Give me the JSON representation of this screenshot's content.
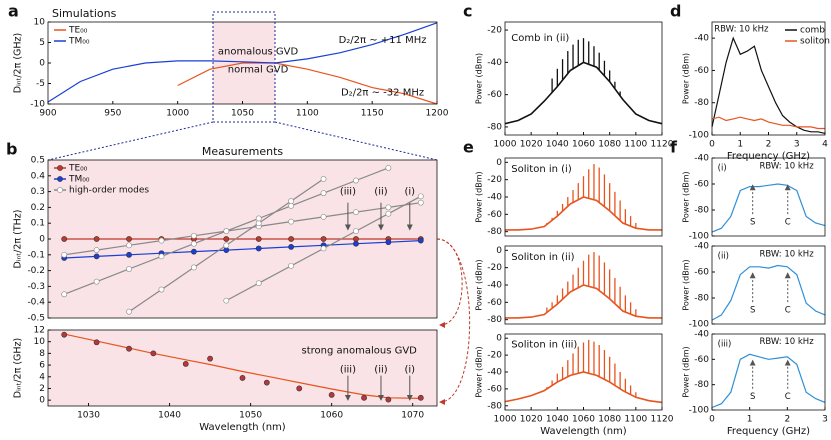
{
  "chart_data": [
    {
      "type": "line",
      "label": "a",
      "title": "Simulations",
      "x": [
        900,
        925,
        950,
        975,
        1000,
        1025,
        1050,
        1075,
        1100,
        1125,
        1150,
        1175,
        1200
      ],
      "xlim": [
        900,
        1200
      ],
      "xticks": [
        900,
        950,
        1000,
        1050,
        1100,
        1150,
        1200
      ],
      "ylim": [
        -10,
        10
      ],
      "yticks": [
        -10,
        -5,
        0,
        5,
        10
      ],
      "ylabel": "Dᵢₙₜ/2π (GHz)",
      "legend": "upper left",
      "series": [
        {
          "name": "TE₀₀",
          "color": "#e8541e",
          "style": "line",
          "values": [
            null,
            null,
            null,
            null,
            -5.5,
            -1.5,
            0,
            0,
            -1.5,
            -3.5,
            -6,
            -7.5,
            -10
          ]
        },
        {
          "name": "TM₀₀",
          "color": "#1a3fd6",
          "style": "line",
          "values": [
            -9.5,
            -4.5,
            -1.5,
            0,
            0.5,
            0.5,
            0.3,
            0,
            1,
            2.5,
            4.5,
            7,
            9.8
          ]
        }
      ],
      "annotations": [
        "anomalous GVD",
        "normal GVD",
        "D₂/2π ~ +11 MHz",
        "D₂/2π ~ -32 MHz"
      ]
    },
    {
      "type": "line",
      "label": "b",
      "title": "Measurements",
      "x": [
        1027,
        1031,
        1035,
        1039,
        1043,
        1047,
        1051,
        1055,
        1059,
        1063,
        1067,
        1071
      ],
      "xlim": [
        1025,
        1073
      ],
      "ylim": [
        -0.5,
        0.5
      ],
      "yticks": [
        -0.5,
        -0.4,
        -0.3,
        -0.2,
        -0.1,
        0,
        0.1,
        0.2,
        0.3,
        0.4,
        0.5
      ],
      "ylabel": "Dᵢₙₜ/2π (THz)",
      "legend": "upper left",
      "series": [
        {
          "name": "TE₀₀",
          "color": "#c0392b",
          "style": "line+points",
          "values": [
            0,
            0,
            0,
            0,
            0,
            0,
            0,
            0,
            0,
            0,
            0,
            0
          ]
        },
        {
          "name": "TM₀₀",
          "color": "#1a3fd6",
          "style": "line+points",
          "values": [
            -0.12,
            -0.11,
            -0.1,
            -0.09,
            -0.08,
            -0.07,
            -0.06,
            -0.05,
            -0.04,
            -0.03,
            -0.02,
            -0.01
          ]
        },
        {
          "name": "high-order modes",
          "color": "#888888",
          "style": "line+hollow",
          "values": [
            -0.1,
            -0.07,
            -0.04,
            -0.01,
            0.02,
            0.05,
            0.08,
            0.11,
            0.14,
            0.17,
            0.2,
            0.23
          ]
        },
        {
          "color": "#888888",
          "style": "line+hollow",
          "values": [
            null,
            null,
            -0.46,
            -0.32,
            -0.18,
            -0.04,
            0.1,
            0.24,
            0.38,
            null,
            null,
            null
          ]
        },
        {
          "color": "#888888",
          "style": "line+hollow",
          "values": [
            -0.35,
            -0.27,
            -0.19,
            -0.11,
            -0.03,
            0.05,
            0.13,
            0.21,
            0.29,
            0.37,
            0.45,
            null
          ]
        },
        {
          "color": "#888888",
          "style": "line+hollow",
          "values": [
            null,
            null,
            null,
            null,
            null,
            -0.39,
            -0.28,
            -0.17,
            -0.06,
            0.05,
            0.16,
            0.27
          ]
        }
      ],
      "annotations": [
        "(iii)",
        "(ii)",
        "(i)"
      ]
    },
    {
      "type": "line",
      "x": [
        1027,
        1031,
        1035,
        1038,
        1042,
        1045,
        1049,
        1052,
        1056,
        1060,
        1064,
        1067,
        1071
      ],
      "xlim": [
        1025,
        1073
      ],
      "xticks": [
        1030,
        1040,
        1050,
        1060,
        1070
      ],
      "ylim": [
        -1,
        12
      ],
      "yticks": [
        0,
        2,
        4,
        6,
        8,
        10,
        12
      ],
      "xlabel": "Wavelength (nm)",
      "ylabel": "Dᵢₙₜ/2π (GHz)",
      "series": [
        {
          "color": "#e8541e",
          "style": "line",
          "values": [
            11.3,
            10.1,
            8.9,
            8.0,
            6.9,
            6.1,
            4.9,
            4.1,
            3.0,
            1.9,
            0.9,
            0.4,
            0.3
          ]
        },
        {
          "color": "#b8373c",
          "style": "points",
          "values": [
            11.2,
            9.9,
            8.8,
            8.0,
            6.2,
            7.1,
            3.8,
            3.0,
            2.0,
            0.9,
            0.4,
            0.1,
            0.4
          ]
        }
      ],
      "annotations": [
        "strong anomalous GVD",
        "(iii)",
        "(ii)",
        "(i)"
      ]
    },
    {
      "type": "stem",
      "label": "c",
      "color": "#111111",
      "x": [
        1000,
        1010,
        1020,
        1030,
        1040,
        1050,
        1060,
        1070,
        1080,
        1090,
        1100,
        1110,
        1120
      ],
      "values": [
        -78,
        -76,
        -72,
        -64,
        -55,
        -45,
        -40,
        -43,
        -52,
        -63,
        -72,
        -76,
        -78
      ],
      "lines": {
        "x": [
          1036,
          1040,
          1044,
          1048,
          1052,
          1056,
          1060,
          1064,
          1068,
          1072,
          1076,
          1080,
          1084,
          1088
        ],
        "values": [
          -50,
          -44,
          -38,
          -33,
          -29,
          -26,
          -25,
          -27,
          -30,
          -34,
          -39,
          -45,
          -52,
          -58
        ]
      },
      "xlim": [
        1000,
        1120
      ],
      "xticks": [
        1000,
        1020,
        1040,
        1060,
        1080,
        1100,
        1120
      ],
      "ylim": [
        -85,
        -15
      ],
      "yticks": [
        -80,
        -60,
        -40,
        -20
      ],
      "ylabel": "Power (dBm)",
      "annotations": [
        "Comb in (ii)"
      ]
    },
    {
      "type": "line",
      "label": "d",
      "x": [
        0,
        0.25,
        0.5,
        0.75,
        1,
        1.25,
        1.5,
        1.75,
        2,
        2.25,
        2.5,
        2.75,
        3,
        3.25,
        3.5,
        3.75,
        4
      ],
      "xlim": [
        0,
        4
      ],
      "xticks": [
        0,
        1,
        2,
        3,
        4
      ],
      "ylim": [
        -100,
        -30
      ],
      "yticks": [
        -100,
        -80,
        -60,
        -40
      ],
      "xlabel": "Frequency (GHz)",
      "ylabel": "Power (dBm)",
      "legend": "upper right",
      "series": [
        {
          "name": "comb",
          "color": "#111111",
          "style": "line",
          "values": [
            -95,
            -75,
            -55,
            -40,
            -50,
            -48,
            -45,
            -60,
            -70,
            -80,
            -88,
            -92,
            -95,
            -97,
            -98,
            -98,
            -99
          ]
        },
        {
          "name": "soliton",
          "color": "#e8541e",
          "style": "line",
          "values": [
            -90,
            -89,
            -91,
            -90,
            -89,
            -90,
            -91,
            -90,
            -92,
            -93,
            -94,
            -94,
            -95,
            -95,
            -95,
            -96,
            -96
          ]
        }
      ],
      "annotations": [
        "RBW: 10 kHz"
      ]
    },
    {
      "type": "stem",
      "label": "e",
      "color": "#e8541e",
      "x": [
        1000,
        1010,
        1020,
        1030,
        1040,
        1050,
        1060,
        1070,
        1080,
        1090,
        1100,
        1110,
        1120
      ],
      "values": [
        -78,
        -78,
        -77,
        -74,
        -62,
        -48,
        -40,
        -44,
        -56,
        -70,
        -76,
        -78,
        -78
      ],
      "lines": {
        "x": [
          1032,
          1036,
          1040,
          1044,
          1048,
          1052,
          1056,
          1060,
          1064,
          1068,
          1072,
          1076,
          1080,
          1084,
          1088,
          1092,
          1096,
          1100
        ],
        "values": [
          -70,
          -64,
          -56,
          -48,
          -40,
          -32,
          -24,
          -16,
          -8,
          -2,
          -6,
          -14,
          -24,
          -34,
          -44,
          -54,
          -62,
          -70
        ]
      },
      "xlim": [
        1000,
        1120
      ],
      "ylim": [
        -85,
        5
      ],
      "yticks": [
        -80,
        -60,
        -40,
        -20,
        0
      ],
      "ylabel": "Power (dBm)",
      "annotations": [
        "Soliton in (i)"
      ]
    },
    {
      "type": "stem",
      "color": "#e8541e",
      "x": [
        1000,
        1010,
        1020,
        1030,
        1040,
        1050,
        1060,
        1070,
        1080,
        1090,
        1100,
        1110,
        1120
      ],
      "values": [
        -78,
        -78,
        -77,
        -74,
        -62,
        -48,
        -40,
        -44,
        -56,
        -70,
        -76,
        -78,
        -78
      ],
      "lines": {
        "x": [
          1032,
          1036,
          1040,
          1044,
          1048,
          1052,
          1056,
          1060,
          1064,
          1068,
          1072,
          1076,
          1080,
          1084,
          1088,
          1092,
          1096,
          1100
        ],
        "values": [
          -66,
          -60,
          -52,
          -44,
          -36,
          -28,
          -20,
          -12,
          -5,
          -2,
          -6,
          -14,
          -22,
          -32,
          -42,
          -52,
          -60,
          -68
        ]
      },
      "xlim": [
        1000,
        1120
      ],
      "ylim": [
        -85,
        5
      ],
      "yticks": [
        -80,
        -60,
        -40,
        -20,
        0
      ],
      "ylabel": "Power (dBm)",
      "annotations": [
        "Soliton in (ii)"
      ]
    },
    {
      "type": "stem",
      "color": "#e8541e",
      "x": [
        1000,
        1010,
        1020,
        1030,
        1040,
        1050,
        1060,
        1070,
        1080,
        1090,
        1100,
        1110,
        1120
      ],
      "values": [
        -75,
        -72,
        -68,
        -62,
        -52,
        -44,
        -40,
        -44,
        -52,
        -62,
        -70,
        -74,
        -76
      ],
      "lines": {
        "x": [
          1032,
          1036,
          1040,
          1044,
          1048,
          1052,
          1056,
          1060,
          1064,
          1068,
          1072,
          1076,
          1080,
          1084,
          1088,
          1092,
          1096,
          1100
        ],
        "values": [
          -58,
          -50,
          -42,
          -34,
          -26,
          -18,
          -10,
          -5,
          -2,
          -4,
          -8,
          -14,
          -22,
          -30,
          -40,
          -48,
          -56,
          -64
        ]
      },
      "xlim": [
        1000,
        1120
      ],
      "xticks": [
        1000,
        1020,
        1040,
        1060,
        1080,
        1100,
        1120
      ],
      "ylim": [
        -85,
        5
      ],
      "yticks": [
        -80,
        -60,
        -40,
        -20,
        0
      ],
      "xlabel": "Wavelength (nm)",
      "ylabel": "Power (dBm)",
      "annotations": [
        "Soliton in (iii)"
      ]
    },
    {
      "type": "line",
      "label": "f",
      "x": [
        0,
        0.25,
        0.5,
        0.75,
        1,
        1.25,
        1.5,
        1.75,
        2,
        2.25,
        2.5,
        2.75,
        3
      ],
      "xlim": [
        0,
        3
      ],
      "ylim": [
        -100,
        -40
      ],
      "yticks": [
        -100,
        -80,
        -60,
        -40
      ],
      "ylabel": "Power (dBm)",
      "series": [
        {
          "color": "#2f8fd8",
          "style": "line",
          "values": [
            -97,
            -94,
            -85,
            -65,
            -62,
            -62,
            -61,
            -60,
            -61,
            -65,
            -85,
            -90,
            -92
          ]
        }
      ],
      "annotations": [
        "(i)",
        "RBW: 10 kHz",
        "S",
        "C"
      ]
    },
    {
      "type": "line",
      "x": [
        0,
        0.25,
        0.5,
        0.75,
        1,
        1.25,
        1.5,
        1.75,
        2,
        2.25,
        2.5,
        2.75,
        3
      ],
      "xlim": [
        0,
        3
      ],
      "ylim": [
        -100,
        -40
      ],
      "yticks": [
        -100,
        -80,
        -60,
        -40
      ],
      "ylabel": "Power (dBm)",
      "series": [
        {
          "color": "#2f8fd8",
          "style": "line",
          "values": [
            -97,
            -93,
            -82,
            -62,
            -56,
            -56,
            -57,
            -55,
            -56,
            -62,
            -84,
            -90,
            -93
          ]
        }
      ],
      "annotations": [
        "(ii)",
        "RBW: 10 kHz",
        "S",
        "C"
      ]
    },
    {
      "type": "line",
      "x": [
        0,
        0.25,
        0.5,
        0.75,
        1,
        1.25,
        1.5,
        1.75,
        2,
        2.25,
        2.5,
        2.75,
        3
      ],
      "xlim": [
        0,
        3
      ],
      "xticks": [
        0,
        1,
        2,
        3
      ],
      "ylim": [
        -100,
        -40
      ],
      "yticks": [
        -100,
        -80,
        -60,
        -40
      ],
      "xlabel": "Frequency (GHz)",
      "ylabel": "Power (dBm)",
      "series": [
        {
          "color": "#2f8fd8",
          "style": "line",
          "values": [
            -98,
            -95,
            -86,
            -60,
            -56,
            -58,
            -60,
            -59,
            -58,
            -64,
            -86,
            -91,
            -94
          ]
        }
      ],
      "annotations": [
        "(iii)",
        "RBW: 10 kHz",
        "S",
        "C"
      ]
    }
  ]
}
